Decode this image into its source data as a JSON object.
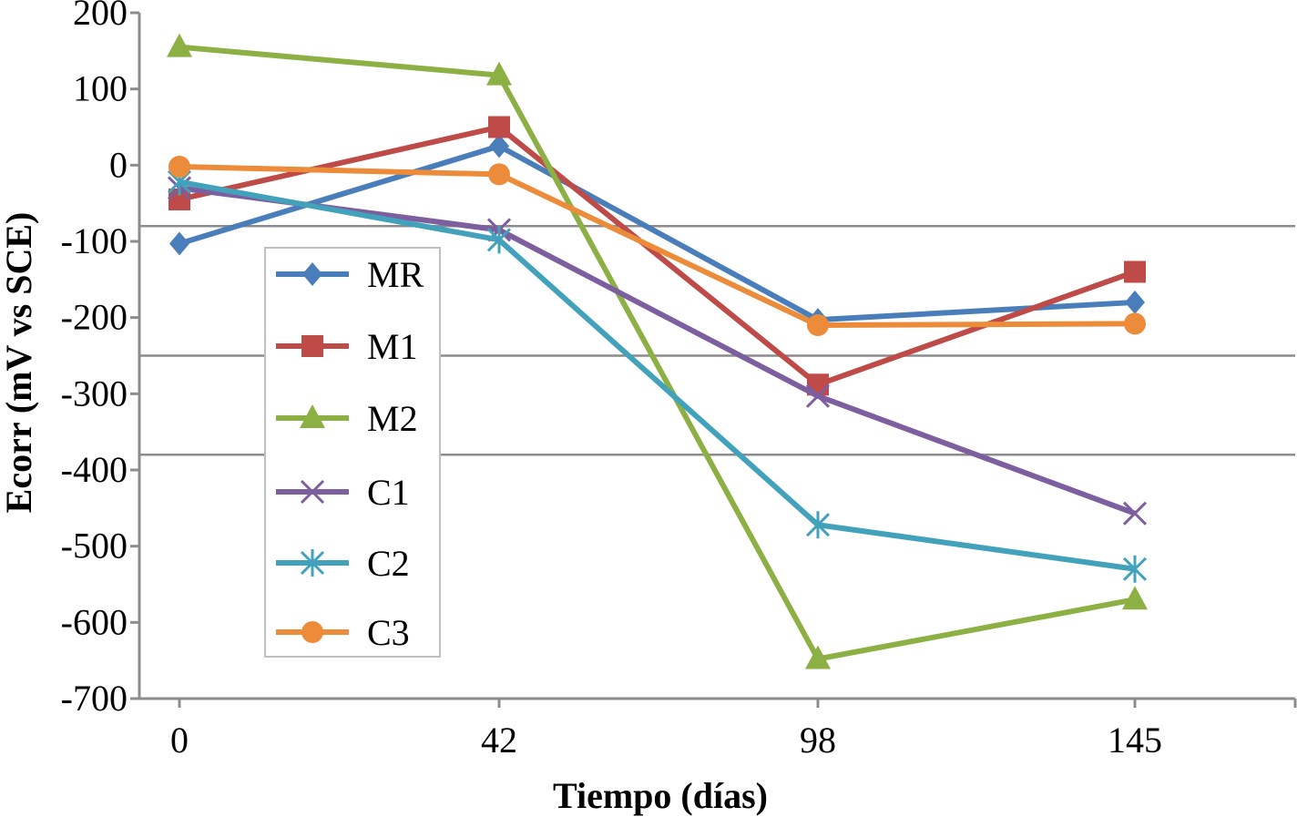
{
  "chart_data": {
    "type": "line",
    "x": [
      0,
      42,
      98,
      145
    ],
    "xlabel": "Tiempo (días)",
    "ylabel": "Ecorr (mV vs SCE)",
    "ylim": [
      -700,
      200
    ],
    "yticks": [
      200,
      100,
      0,
      -100,
      -200,
      -300,
      -400,
      -500,
      -600,
      -700
    ],
    "grid": false,
    "reference_lines": [
      -80,
      -250,
      -380
    ],
    "legend_position": "left-center inside plot",
    "series": [
      {
        "name": "MR",
        "values": [
          -103,
          25,
          -203,
          -180
        ],
        "color": "#4a7ebb",
        "marker": "diamond"
      },
      {
        "name": "M1",
        "values": [
          -45,
          50,
          -288,
          -140
        ],
        "color": "#be4b48",
        "marker": "square"
      },
      {
        "name": "M2",
        "values": [
          155,
          118,
          -648,
          -570
        ],
        "color": "#8db045",
        "marker": "triangle"
      },
      {
        "name": "C1",
        "values": [
          -30,
          -85,
          -303,
          -457
        ],
        "color": "#7d5fa0",
        "marker": "x"
      },
      {
        "name": "C2",
        "values": [
          -22,
          -98,
          -472,
          -530
        ],
        "color": "#43a2bb",
        "marker": "asterisk"
      },
      {
        "name": "C3",
        "values": [
          -2,
          -12,
          -210,
          -208
        ],
        "color": "#ec8c3a",
        "marker": "circle"
      }
    ]
  }
}
